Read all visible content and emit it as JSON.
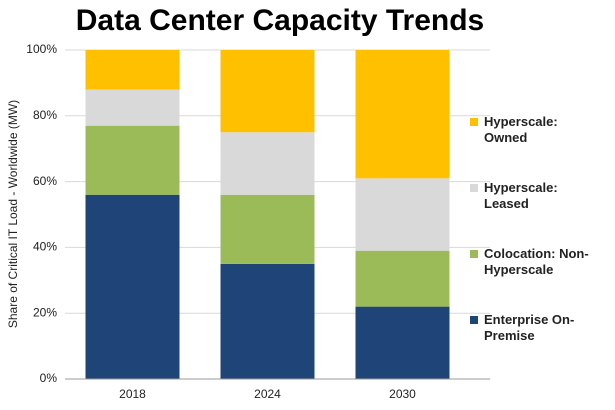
{
  "chart_data": {
    "type": "stacked_bar",
    "title": "Data Center Capacity Trends",
    "y_label": "Share of Critical IT Load - Worldwide (MW)",
    "categories": [
      "2018",
      "2024",
      "2030"
    ],
    "series": [
      {
        "name": "Enterprise On-Premise",
        "color": "#1f4578",
        "values": [
          56,
          35,
          22
        ]
      },
      {
        "name": "Colocation: Non-Hyperscale",
        "color": "#9bbb59",
        "values": [
          21,
          21,
          17
        ]
      },
      {
        "name": "Hyperscale: Leased",
        "color": "#d9d9d9",
        "values": [
          11,
          19,
          22
        ]
      },
      {
        "name": "Hyperscale: Owned",
        "color": "#ffc000",
        "values": [
          12,
          25,
          39
        ]
      }
    ],
    "ylim": [
      0,
      100
    ],
    "yticks": [
      {
        "value": 0,
        "label": "0%"
      },
      {
        "value": 20,
        "label": "20%"
      },
      {
        "value": 40,
        "label": "40%"
      },
      {
        "value": 60,
        "label": "60%"
      },
      {
        "value": 80,
        "label": "80%"
      },
      {
        "value": 100,
        "label": "100%"
      }
    ],
    "grid": true,
    "legend": "right"
  }
}
